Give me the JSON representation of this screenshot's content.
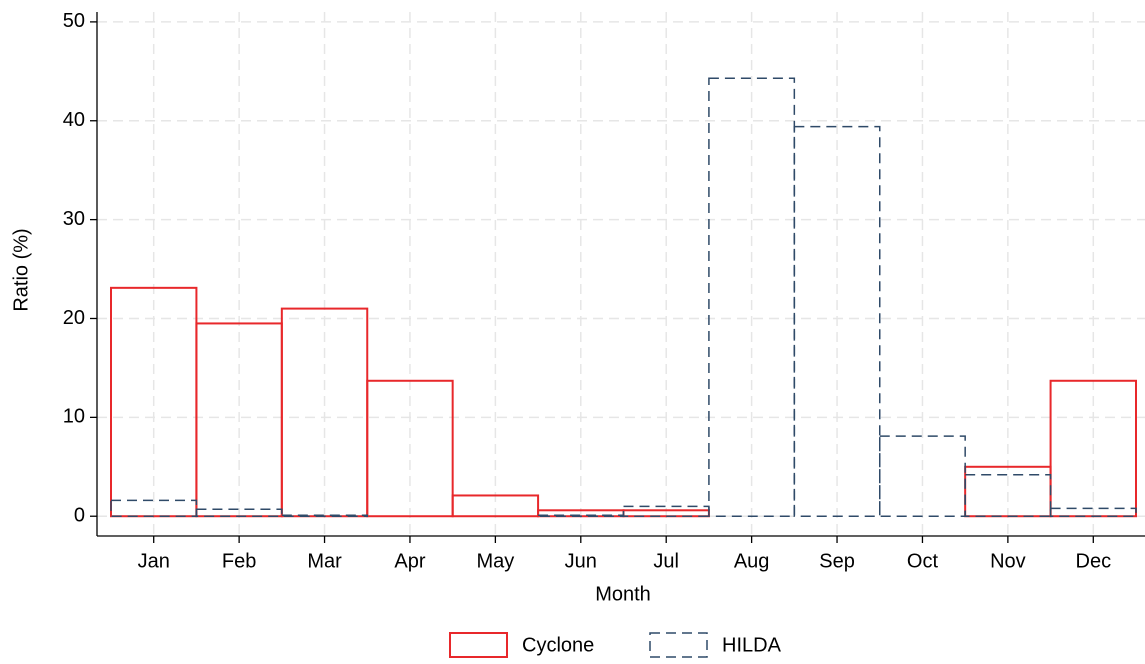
{
  "chart_data": {
    "type": "bar",
    "x_label": "Month",
    "y_label": "Ratio (%)",
    "categories": [
      "Jan",
      "Feb",
      "Mar",
      "Apr",
      "May",
      "Jun",
      "Jul",
      "Aug",
      "Sep",
      "Oct",
      "Nov",
      "Dec"
    ],
    "series": [
      {
        "name": "Cyclone",
        "color": "#e8282b",
        "dashed": false,
        "values": [
          23.1,
          19.5,
          21.0,
          13.7,
          2.1,
          0.6,
          0.6,
          0,
          0,
          0,
          5.0,
          13.7
        ]
      },
      {
        "name": "HILDA",
        "color": "#2f4a68",
        "dashed": true,
        "values": [
          1.6,
          0.7,
          0.1,
          0,
          0,
          0.1,
          1.0,
          44.3,
          39.4,
          8.1,
          4.2,
          0.8
        ]
      }
    ],
    "ylim": [
      -2,
      51
    ],
    "yticks": [
      0,
      10,
      20,
      30,
      40,
      50
    ],
    "grid": true,
    "legend": "bottom"
  }
}
